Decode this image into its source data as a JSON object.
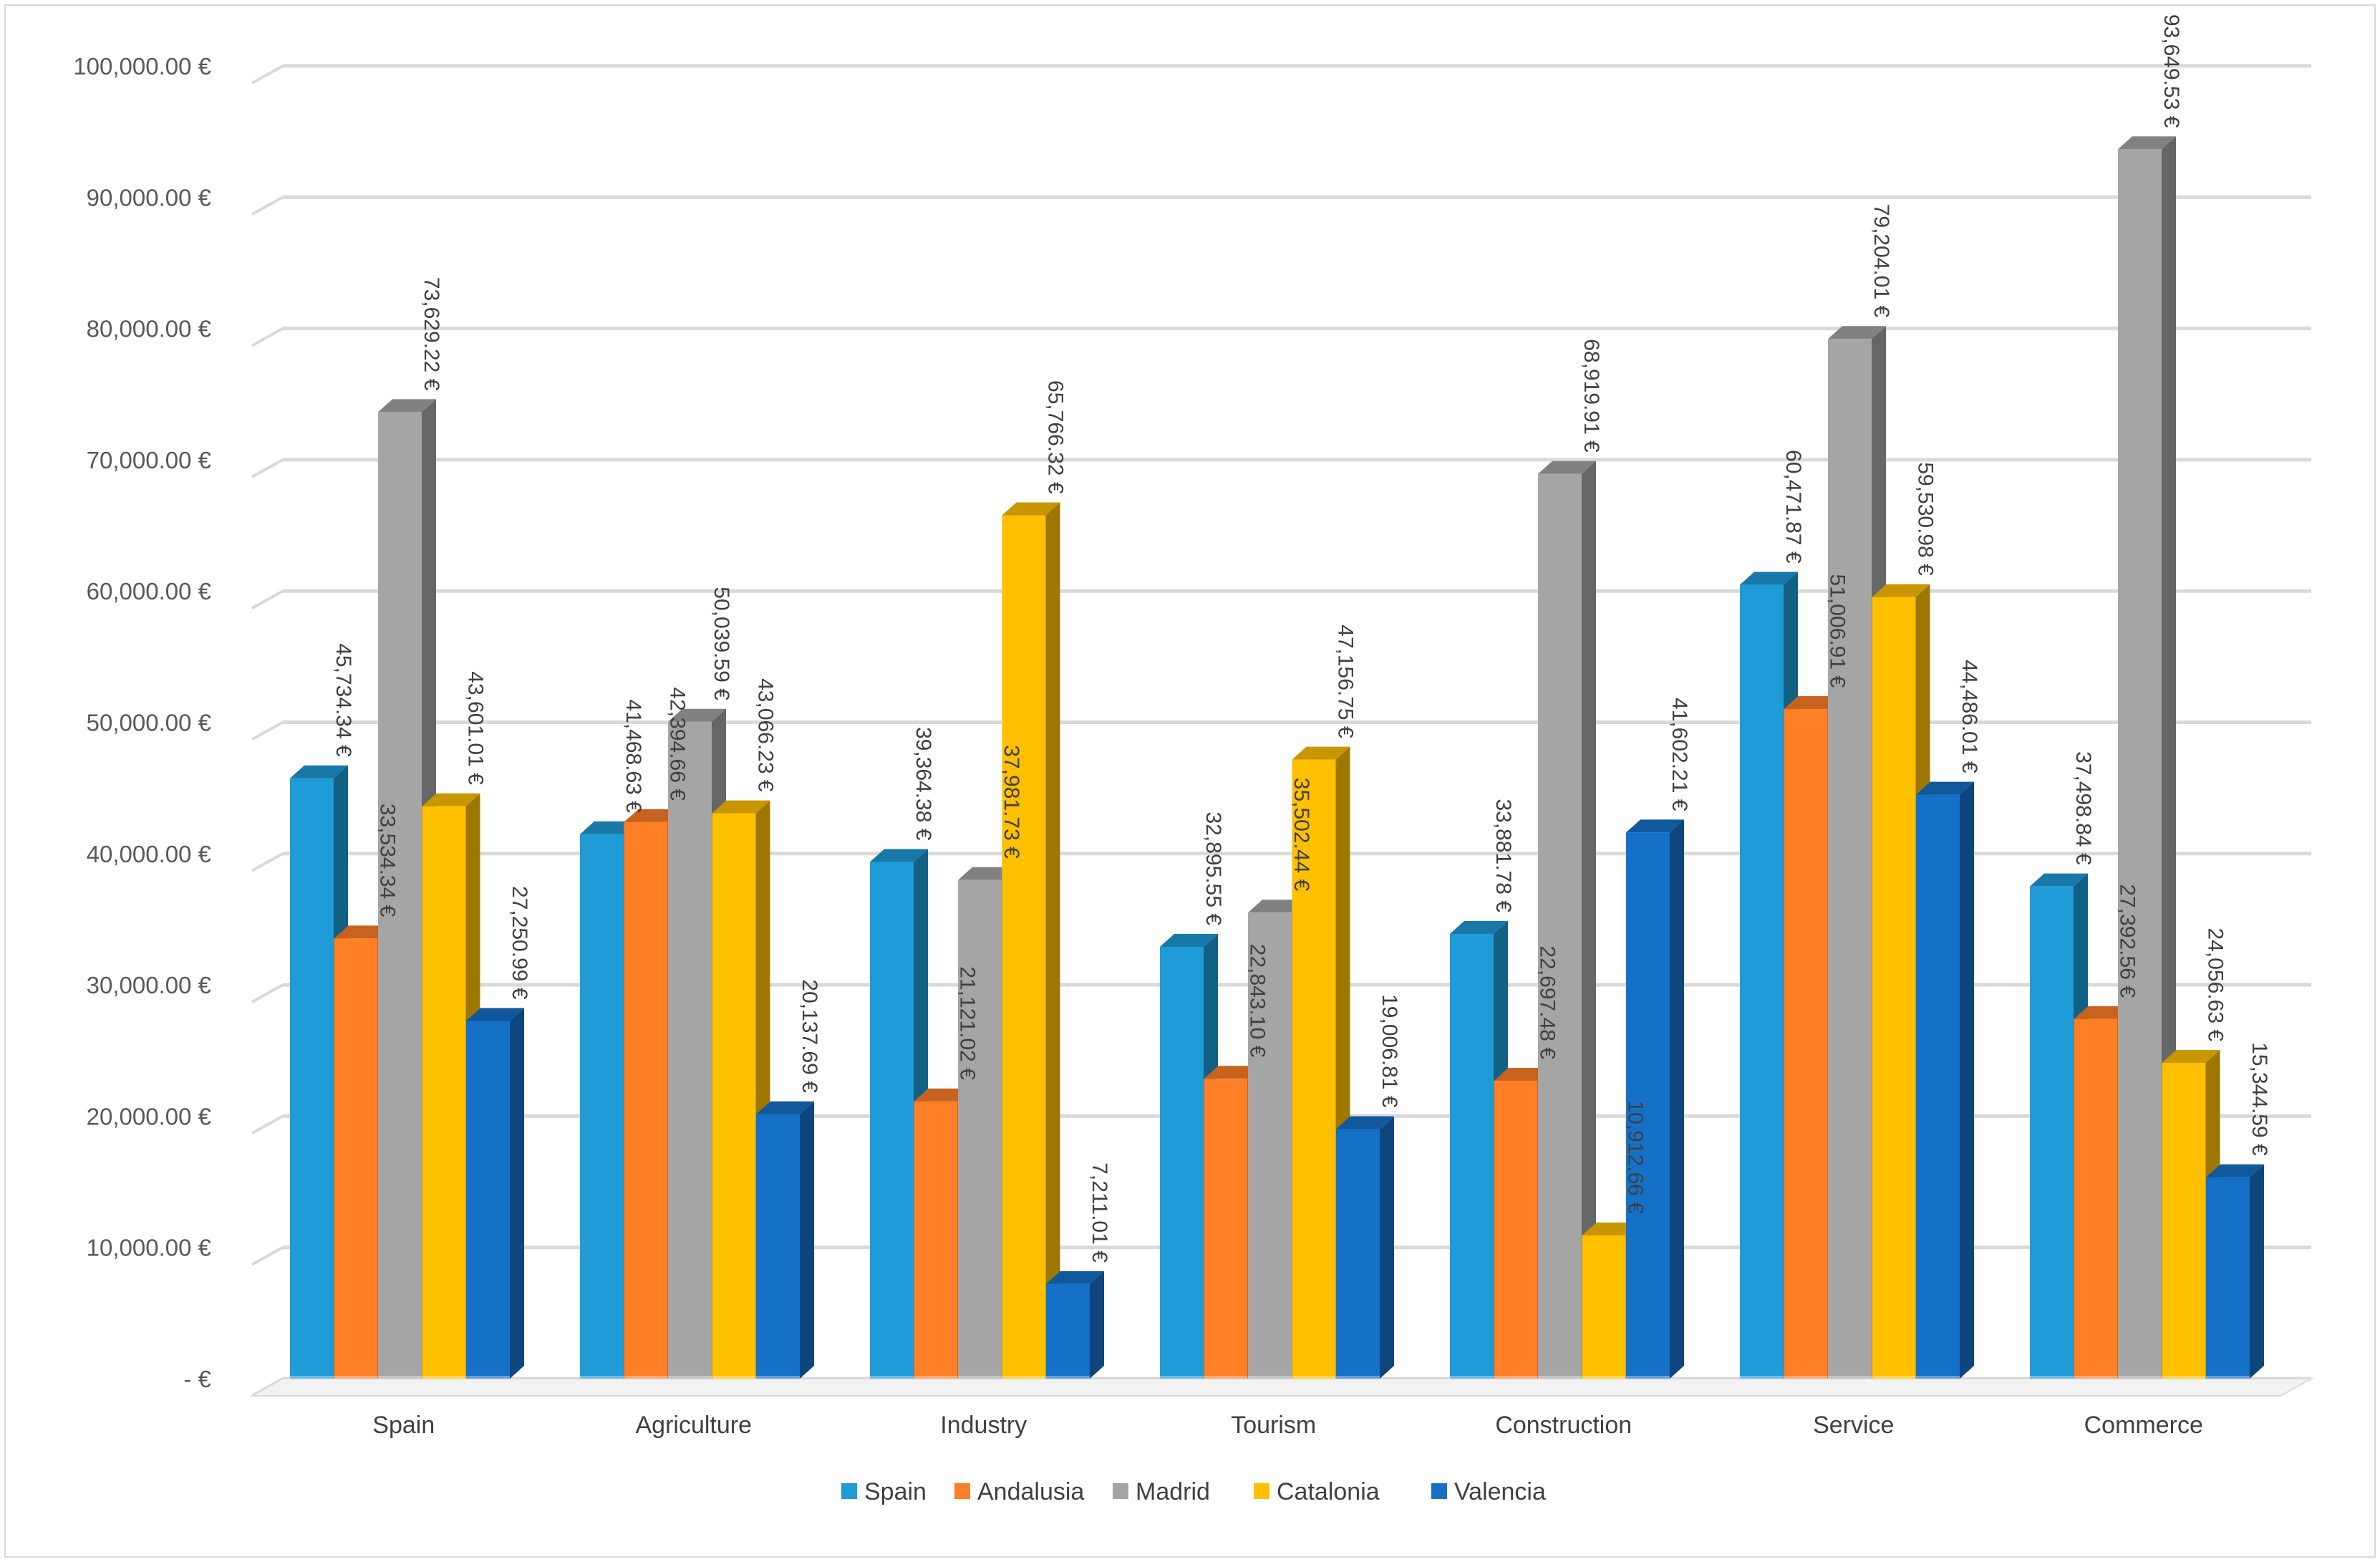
{
  "chart_data": {
    "type": "bar",
    "style": "3d-clustered-column",
    "title": "",
    "xlabel": "",
    "ylabel": "",
    "ylim": [
      0,
      100000
    ],
    "ytick_step": 10000,
    "grid": true,
    "legend_position": "bottom",
    "categories": [
      "Spain",
      "Agriculture",
      "Industry",
      "Tourism",
      "Construction",
      "Service",
      "Commerce"
    ],
    "y_tick_labels": [
      "-  €",
      "10,000.00 €",
      "20,000.00 €",
      "30,000.00 €",
      "40,000.00 €",
      "50,000.00 €",
      "60,000.00 €",
      "70,000.00 €",
      "80,000.00 €",
      "90,000.00 €",
      "100,000.00 €"
    ],
    "series": [
      {
        "name": "Spain",
        "color": "#1F9BD7",
        "values": [
          45734.34,
          41468.63,
          39364.38,
          32895.55,
          33881.78,
          60471.87,
          37498.84
        ],
        "labels": [
          "45,734.34 €",
          "41,468.63 €",
          "39,364.38 €",
          "32,895.55 €",
          "33,881.78 €",
          "60,471.87 €",
          "37,498.84 €"
        ]
      },
      {
        "name": "Andalusia",
        "color": "#FF7F27",
        "values": [
          33534.34,
          42394.66,
          21121.02,
          22843.1,
          22697.48,
          51006.91,
          27392.56
        ],
        "labels": [
          "33,534.34 €",
          "42,394.66 €",
          "21,121.02 €",
          "22,843.10 €",
          "22,697.48 €",
          "51,006.91 €",
          "27,392.56 €"
        ]
      },
      {
        "name": "Madrid",
        "color": "#A5A5A5",
        "values": [
          73629.22,
          50039.59,
          37981.73,
          35502.44,
          68919.91,
          79204.01,
          93649.53
        ],
        "labels": [
          "73,629.22 €",
          "50,039.59 €",
          "37,981.73 €",
          "35,502.44 €",
          "68,919.91 €",
          "79,204.01 €",
          "93,649.53 €"
        ]
      },
      {
        "name": "Catalonia",
        "color": "#FFC000",
        "values": [
          43601.01,
          43066.23,
          65766.32,
          47156.75,
          10912.66,
          59530.98,
          24056.63
        ],
        "labels": [
          "43,601.01 €",
          "43,066.23 €",
          "65,766.32 €",
          "47,156.75 €",
          "10,912.66 €",
          "59,530.98 €",
          "24,056.63 €"
        ]
      },
      {
        "name": "Valencia",
        "color": "#1570C8",
        "values": [
          27250.99,
          20137.69,
          7211.01,
          19006.81,
          41602.21,
          44486.01,
          15344.59
        ],
        "labels": [
          "27,250.99 €",
          "20,137.69 €",
          "7,211.01 €",
          "19,006.81 €",
          "41,602.21 €",
          "44,486.01 €",
          "15,344.59 €"
        ]
      }
    ]
  }
}
